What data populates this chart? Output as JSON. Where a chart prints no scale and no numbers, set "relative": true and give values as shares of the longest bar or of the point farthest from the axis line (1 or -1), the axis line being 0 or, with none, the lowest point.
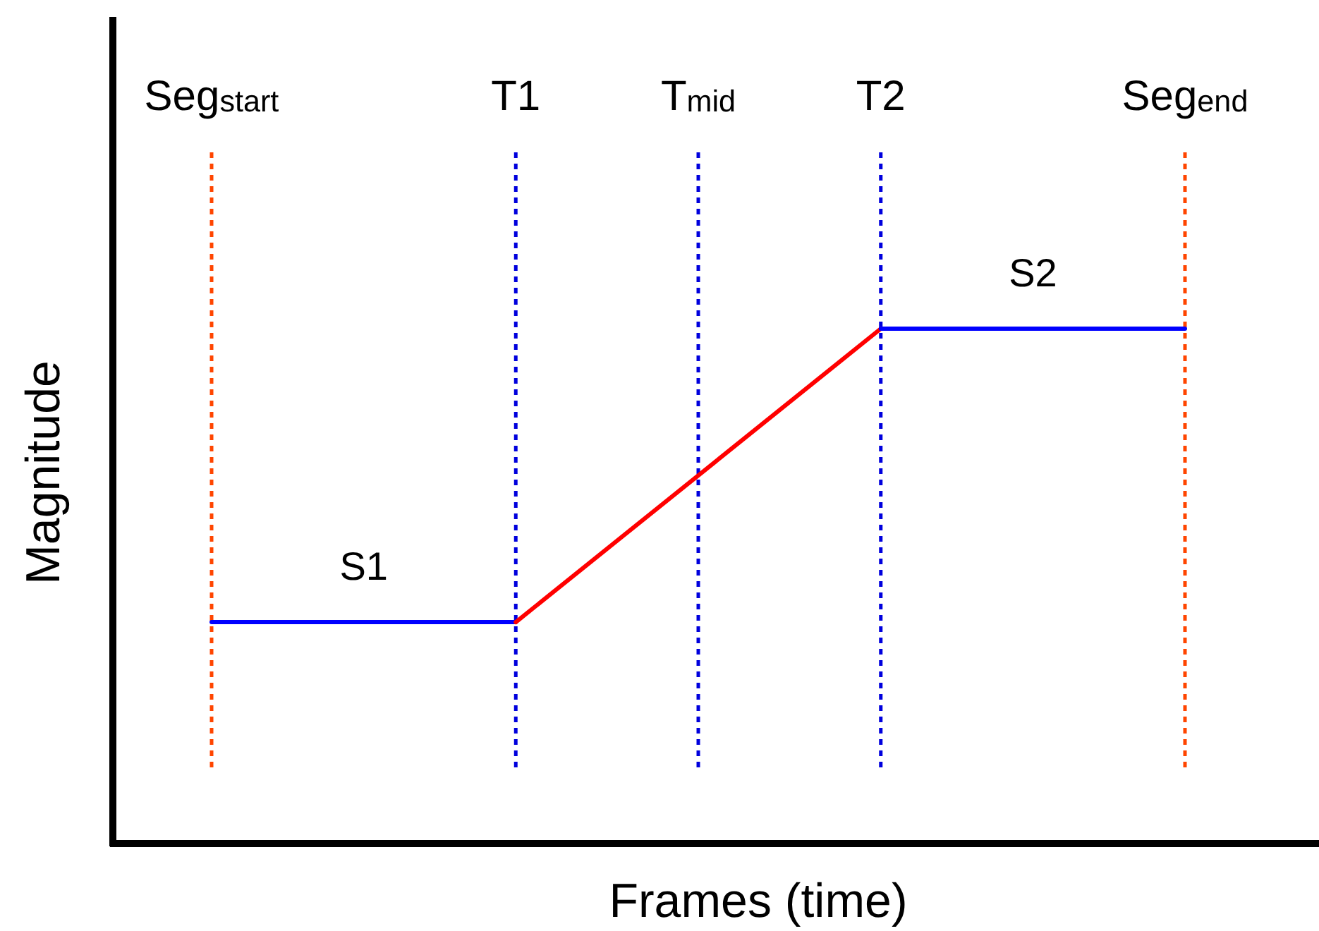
{
  "chart_data": {
    "type": "line",
    "relative": true,
    "xlabel": "Frames (time)",
    "ylabel": "Magnitude",
    "marker": "none",
    "line_style": "solid",
    "categories": [
      "Seg$_{start}$",
      null,
      null,
      null,
      null,
      "T1",
      null,
      null,
      "T$_{mid}$",
      null,
      null,
      "T2",
      null,
      null,
      null,
      null,
      "Seg$_{end}$"
    ],
    "series": [
      {
        "name": "S1",
        "color": "#0000ff",
        "values": [
          0.43,
          0.43,
          0.43,
          0.43,
          0.43,
          0.43,
          null,
          null,
          null,
          null,
          null,
          null,
          null,
          null,
          null,
          null,
          null
        ]
      },
      {
        "color": "#ff0000",
        "values": [
          null,
          null,
          null,
          null,
          null,
          0.43,
          null,
          null,
          null,
          null,
          null,
          1,
          null,
          null,
          null,
          null,
          null
        ]
      },
      {
        "name": "S2",
        "color": "#0000ff",
        "values": [
          null,
          null,
          null,
          null,
          null,
          null,
          null,
          null,
          null,
          null,
          null,
          1,
          1,
          1,
          1,
          1,
          1
        ]
      }
    ],
    "ref_lines": [
      {
        "axis": "x",
        "value": "Seg$_{start}$",
        "color": "#ff4500",
        "line_style": "dotted"
      },
      {
        "axis": "x",
        "value": "T1",
        "color": "#0000dd",
        "line_style": "dotted"
      },
      {
        "axis": "x",
        "value": "T$_{mid}$",
        "color": "#0000dd",
        "line_style": "dotted"
      },
      {
        "axis": "x",
        "value": "T2",
        "color": "#0000dd",
        "line_style": "dotted"
      },
      {
        "axis": "x",
        "value": "Seg$_{end}$",
        "color": "#ff4500",
        "line_style": "dotted"
      }
    ]
  }
}
